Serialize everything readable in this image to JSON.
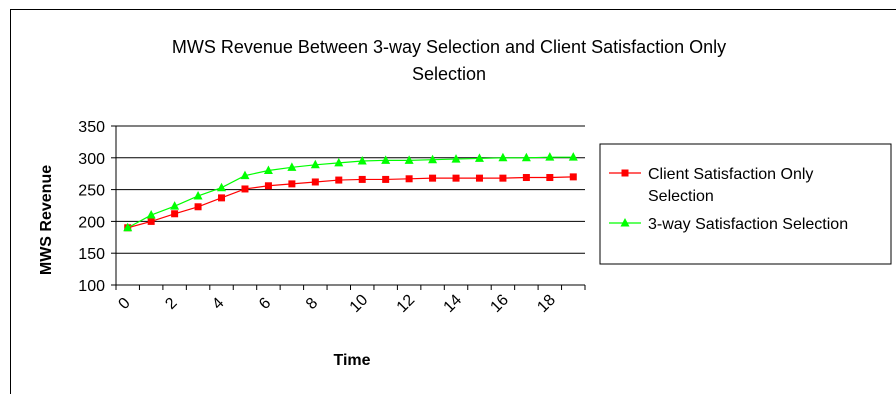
{
  "chart_data": {
    "type": "line",
    "title": [
      "MWS Revenue Between 3-way Selection and Client Satisfaction Only",
      "Selection"
    ],
    "xlabel": "Time",
    "ylabel": "MWS Revenue",
    "ylim": [
      100,
      350
    ],
    "yticks": [
      100,
      150,
      200,
      250,
      300,
      350
    ],
    "x": [
      0,
      1,
      2,
      3,
      4,
      5,
      6,
      7,
      8,
      9,
      10,
      11,
      12,
      13,
      14,
      15,
      16,
      17,
      18,
      19
    ],
    "xticks": [
      "0",
      "2",
      "4",
      "6",
      "8",
      "10",
      "12",
      "14",
      "16",
      "18"
    ],
    "grid": "horizontal major gridlines",
    "legend_position": "right",
    "series": [
      {
        "name": [
          "Client Satisfaction Only",
          "Selection"
        ],
        "color": "#ff0000",
        "marker": "square",
        "values": [
          190,
          200,
          212,
          223,
          237,
          251,
          256,
          259,
          262,
          265,
          266,
          266,
          267,
          268,
          268,
          268,
          268,
          269,
          269,
          270
        ]
      },
      {
        "name": [
          "3-way Satisfaction Selection"
        ],
        "color": "#00ff00",
        "marker": "triangle",
        "values": [
          190,
          210,
          224,
          240,
          253,
          272,
          280,
          285,
          289,
          292,
          295,
          296,
          296,
          297,
          298,
          299,
          300,
          300,
          301,
          301
        ]
      }
    ]
  }
}
